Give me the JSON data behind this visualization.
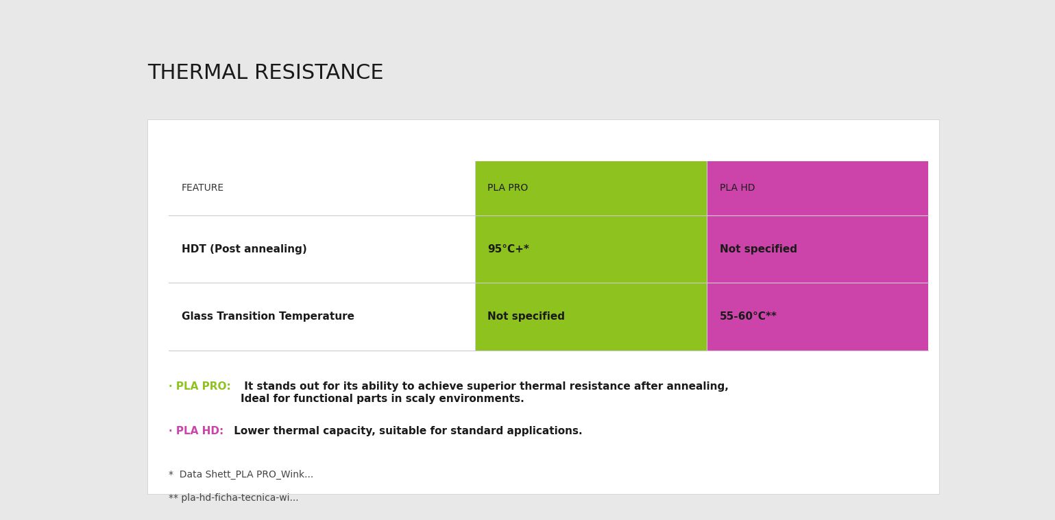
{
  "title": "THERMAL RESISTANCE",
  "bg_outer": "#e8e8e8",
  "bg_card": "#ffffff",
  "col_header_plapro_color": "#8dc21f",
  "col_header_plahd_color": "#cc44aa",
  "col_header_text_color": "#1a1a1a",
  "row_header_color": "#ffffff",
  "row_feature_color": "#ffffff",
  "row_plapro_color": "#8dc21f",
  "row_plahd_color": "#cc44aa",
  "table_headers": [
    "FEATURE",
    "PLA PRO",
    "PLA HD"
  ],
  "rows": [
    {
      "feature": "HDT (Post annealing)",
      "plapro": "95°C+*",
      "plahd": "Not specified"
    },
    {
      "feature": "Glass Transition Temperature",
      "plapro": "Not specified",
      "plahd": "55-60°C**"
    }
  ],
  "notes_plapro_label": "· PLA PRO:",
  "notes_plapro_label_color": "#8dc21f",
  "notes_plapro_text": " It stands out for its ability to achieve superior thermal resistance after annealing,\nIdeal for functional parts in scaly environments.",
  "notes_plahd_label": "· PLA HD:",
  "notes_plahd_label_color": "#cc44aa",
  "notes_plahd_text": " Lower thermal capacity, suitable for standard applications.",
  "footnote1": "*  Data Shett_PLA PRO_Wink...",
  "footnote2": "** pla-hd-ficha-tecnica-wi...",
  "title_fontsize": 22,
  "header_fontsize": 10,
  "cell_fontsize": 11,
  "note_fontsize": 11,
  "footnote_fontsize": 10
}
